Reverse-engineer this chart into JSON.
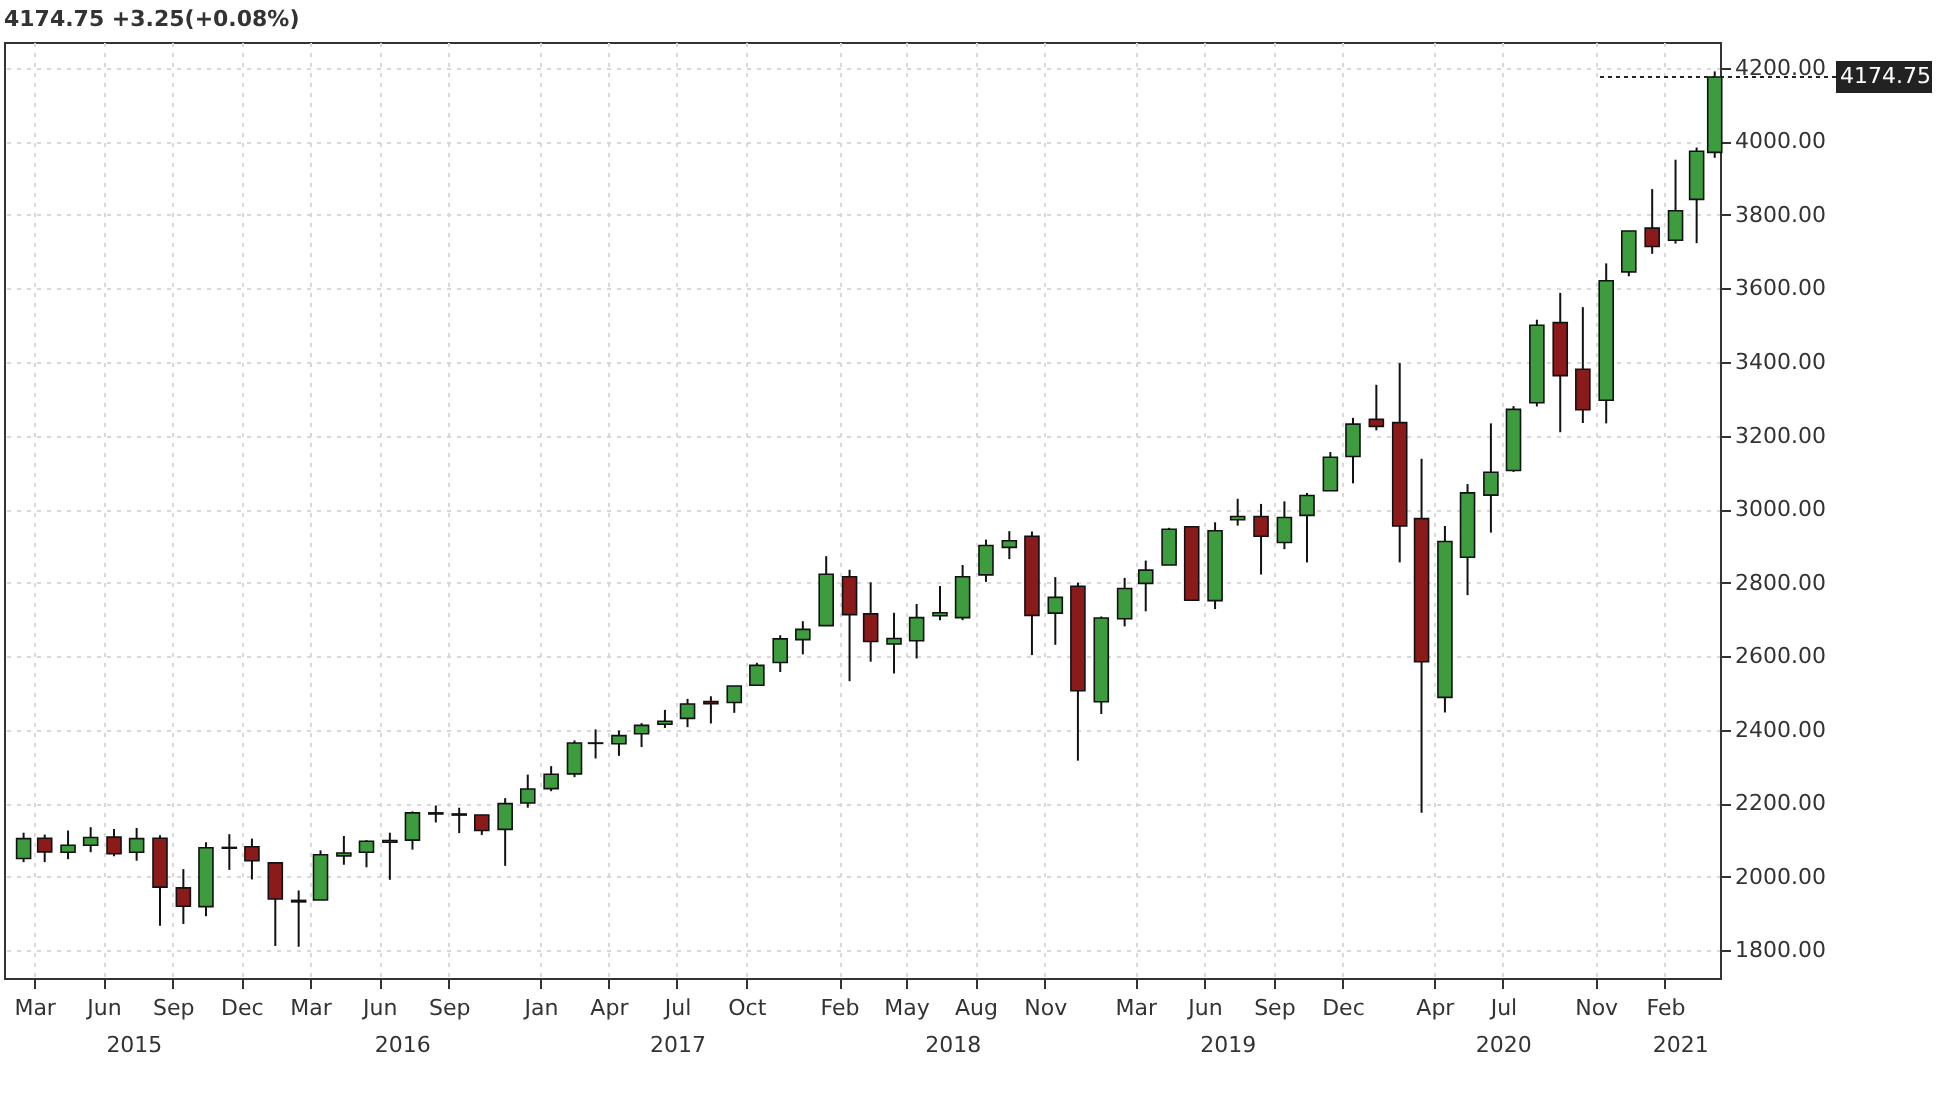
{
  "chart_data": {
    "type": "candlestick",
    "title": "4174.75 +3.25(+0.08%)",
    "x": [
      "2015-02-15",
      "2015-03-15",
      "2015-04-15",
      "2015-05-15",
      "2015-06-15",
      "2015-07-15",
      "2015-08-15",
      "2015-09-15",
      "2015-10-15",
      "2015-11-15",
      "2015-12-15",
      "2016-01-15",
      "2016-02-15",
      "2016-03-15",
      "2016-04-15",
      "2016-05-15",
      "2016-06-15",
      "2016-07-15",
      "2016-08-15",
      "2016-09-15",
      "2016-10-15",
      "2016-11-15",
      "2016-12-15",
      "2017-01-15",
      "2017-02-15",
      "2017-03-15",
      "2017-04-15",
      "2017-05-15",
      "2017-06-15",
      "2017-07-15",
      "2017-08-15",
      "2017-09-15",
      "2017-10-15",
      "2017-11-15",
      "2017-12-15",
      "2018-01-15",
      "2018-02-15",
      "2018-03-15",
      "2018-04-15",
      "2018-05-15",
      "2018-06-15",
      "2018-07-15",
      "2018-08-15",
      "2018-09-15",
      "2018-10-15",
      "2018-11-15",
      "2018-12-15",
      "2019-01-15",
      "2019-02-15",
      "2019-03-15",
      "2019-04-15",
      "2019-05-15",
      "2019-06-15",
      "2019-07-15",
      "2019-08-15",
      "2019-09-15",
      "2019-10-15",
      "2019-11-15",
      "2019-12-15",
      "2020-01-15",
      "2020-02-15",
      "2020-03-15",
      "2020-04-15",
      "2020-05-15",
      "2020-06-15",
      "2020-07-15",
      "2020-08-15",
      "2020-09-15",
      "2020-10-15",
      "2020-11-15",
      "2020-12-15",
      "2021-01-15",
      "2021-02-15",
      "2021-03-15",
      "2021-04-08"
    ],
    "ohlc": [
      [
        2050,
        2120,
        2040,
        2104
      ],
      [
        2105,
        2115,
        2040,
        2068
      ],
      [
        2067,
        2126,
        2048,
        2086
      ],
      [
        2086,
        2135,
        2067,
        2107
      ],
      [
        2108,
        2130,
        2056,
        2063
      ],
      [
        2067,
        2133,
        2044,
        2104
      ],
      [
        2105,
        2113,
        1867,
        1972
      ],
      [
        1970,
        2021,
        1872,
        1920
      ],
      [
        1919,
        2094,
        1893,
        2079
      ],
      [
        2078,
        2116,
        2019,
        2080
      ],
      [
        2082,
        2104,
        1993,
        2044
      ],
      [
        2038,
        2038,
        1812,
        1940
      ],
      [
        1936,
        1963,
        1810,
        1932
      ],
      [
        1937,
        2072,
        1937,
        2060
      ],
      [
        2057,
        2111,
        2033,
        2065
      ],
      [
        2067,
        2100,
        2026,
        2097
      ],
      [
        2094,
        2120,
        1992,
        2099
      ],
      [
        2100,
        2178,
        2074,
        2174
      ],
      [
        2174,
        2194,
        2148,
        2171
      ],
      [
        2171,
        2188,
        2119,
        2168
      ],
      [
        2168,
        2169,
        2114,
        2126
      ],
      [
        2129,
        2214,
        2030,
        2199
      ],
      [
        2201,
        2278,
        2188,
        2239
      ],
      [
        2240,
        2301,
        2233,
        2279
      ],
      [
        2280,
        2371,
        2271,
        2364
      ],
      [
        2364,
        2401,
        2322,
        2363
      ],
      [
        2362,
        2398,
        2329,
        2384
      ],
      [
        2389,
        2418,
        2353,
        2412
      ],
      [
        2415,
        2454,
        2405,
        2423
      ],
      [
        2431,
        2484,
        2407,
        2470
      ],
      [
        2477,
        2491,
        2417,
        2471
      ],
      [
        2474,
        2519,
        2446,
        2519
      ],
      [
        2521,
        2582,
        2520,
        2575
      ],
      [
        2583,
        2657,
        2557,
        2647
      ],
      [
        2645,
        2695,
        2605,
        2673
      ],
      [
        2683,
        2872,
        2682,
        2823
      ],
      [
        2816,
        2835,
        2532,
        2713
      ],
      [
        2715,
        2801,
        2585,
        2640
      ],
      [
        2633,
        2718,
        2553,
        2648
      ],
      [
        2642,
        2742,
        2594,
        2705
      ],
      [
        2710,
        2791,
        2698,
        2718
      ],
      [
        2705,
        2848,
        2698,
        2816
      ],
      [
        2821,
        2917,
        2802,
        2901
      ],
      [
        2896,
        2940,
        2864,
        2914
      ],
      [
        2926,
        2939,
        2603,
        2711
      ],
      [
        2717,
        2815,
        2631,
        2760
      ],
      [
        2790,
        2800,
        2316,
        2506
      ],
      [
        2476,
        2708,
        2443,
        2704
      ],
      [
        2702,
        2813,
        2681,
        2784
      ],
      [
        2798,
        2860,
        2722,
        2834
      ],
      [
        2848,
        2949,
        2848,
        2945
      ],
      [
        2952,
        2954,
        2750,
        2752
      ],
      [
        2751,
        2964,
        2728,
        2941
      ],
      [
        2971,
        3028,
        2955,
        2980
      ],
      [
        2980,
        3014,
        2822,
        2926
      ],
      [
        2909,
        3021,
        2891,
        2977
      ],
      [
        2983,
        3044,
        2855,
        3037
      ],
      [
        3050,
        3155,
        3050,
        3141
      ],
      [
        3143,
        3248,
        3070,
        3231
      ],
      [
        3244,
        3338,
        3214,
        3225
      ],
      [
        3235,
        3397,
        2855,
        2954
      ],
      [
        2974,
        3137,
        2174,
        2585
      ],
      [
        2488,
        2954,
        2447,
        2912
      ],
      [
        2869,
        3068,
        2766,
        3044
      ],
      [
        3038,
        3233,
        2936,
        3100
      ],
      [
        3105,
        3280,
        3101,
        3271
      ],
      [
        3289,
        3515,
        3279,
        3500
      ],
      [
        3507,
        3588,
        3209,
        3363
      ],
      [
        3380,
        3549,
        3234,
        3270
      ],
      [
        3296,
        3668,
        3233,
        3621
      ],
      [
        3645,
        3756,
        3633,
        3756
      ],
      [
        3764,
        3870,
        3694,
        3714
      ],
      [
        3731,
        3950,
        3722,
        3811
      ],
      [
        3842,
        3983,
        3723,
        3973
      ],
      [
        3970,
        4190,
        3955,
        4174.75
      ]
    ],
    "colors": [
      "#3d9c3d",
      "#8b1a1a",
      "#3d9c3d",
      "#3d9c3d",
      "#8b1a1a",
      "#3d9c3d",
      "#8b1a1a",
      "#8b1a1a",
      "#3d9c3d",
      "#3d9c3d",
      "#8b1a1a",
      "#8b1a1a",
      "#8b1a1a",
      "#3d9c3d",
      "#3d9c3d",
      "#3d9c3d",
      "#3d9c3d",
      "#3d9c3d",
      "#8b1a1a",
      "#8b1a1a",
      "#8b1a1a",
      "#3d9c3d",
      "#3d9c3d",
      "#3d9c3d",
      "#3d9c3d",
      "#8b1a1a",
      "#3d9c3d",
      "#3d9c3d",
      "#3d9c3d",
      "#3d9c3d",
      "#8b1a1a",
      "#3d9c3d",
      "#3d9c3d",
      "#3d9c3d",
      "#3d9c3d",
      "#3d9c3d",
      "#8b1a1a",
      "#8b1a1a",
      "#3d9c3d",
      "#3d9c3d",
      "#3d9c3d",
      "#3d9c3d",
      "#3d9c3d",
      "#3d9c3d",
      "#8b1a1a",
      "#3d9c3d",
      "#8b1a1a",
      "#3d9c3d",
      "#3d9c3d",
      "#3d9c3d",
      "#3d9c3d",
      "#8b1a1a",
      "#3d9c3d",
      "#3d9c3d",
      "#8b1a1a",
      "#3d9c3d",
      "#3d9c3d",
      "#3d9c3d",
      "#3d9c3d",
      "#8b1a1a",
      "#8b1a1a",
      "#8b1a1a",
      "#3d9c3d",
      "#3d9c3d",
      "#3d9c3d",
      "#3d9c3d",
      "#3d9c3d",
      "#8b1a1a",
      "#8b1a1a",
      "#3d9c3d",
      "#3d9c3d",
      "#8b1a1a",
      "#3d9c3d",
      "#3d9c3d",
      "#3d9c3d"
    ],
    "xlim": [
      "2015-01-20",
      "2021-04-15"
    ],
    "xticks": [
      {
        "value": "2015-03-01",
        "label": "Mar"
      },
      {
        "value": "2015-06-01",
        "label": "Jun"
      },
      {
        "value": "2015-09-01",
        "label": "Sep"
      },
      {
        "value": "2015-12-01",
        "label": "Dec"
      },
      {
        "value": "2016-03-01",
        "label": "Mar"
      },
      {
        "value": "2016-06-01",
        "label": "Jun"
      },
      {
        "value": "2016-09-01",
        "label": "Sep"
      },
      {
        "value": "2017-01-01",
        "label": "Jan"
      },
      {
        "value": "2017-04-01",
        "label": "Apr"
      },
      {
        "value": "2017-07-01",
        "label": "Jul"
      },
      {
        "value": "2017-10-01",
        "label": "Oct"
      },
      {
        "value": "2018-02-01",
        "label": "Feb"
      },
      {
        "value": "2018-05-01",
        "label": "May"
      },
      {
        "value": "2018-08-01",
        "label": "Aug"
      },
      {
        "value": "2018-11-01",
        "label": "Nov"
      },
      {
        "value": "2019-03-01",
        "label": "Mar"
      },
      {
        "value": "2019-06-01",
        "label": "Jun"
      },
      {
        "value": "2019-09-01",
        "label": "Sep"
      },
      {
        "value": "2019-12-01",
        "label": "Dec"
      },
      {
        "value": "2020-04-01",
        "label": "Apr"
      },
      {
        "value": "2020-07-01",
        "label": "Jul"
      },
      {
        "value": "2020-11-01",
        "label": "Nov"
      },
      {
        "value": "2021-02-01",
        "label": "Feb"
      }
    ],
    "ylim": [
      1725,
      4270
    ],
    "yticks": [
      {
        "value": 1800,
        "label": "1800.00"
      },
      {
        "value": 2000,
        "label": "2000.00"
      },
      {
        "value": 2200,
        "label": "2200.00"
      },
      {
        "value": 2400,
        "label": "2400.00"
      },
      {
        "value": 2600,
        "label": "2600.00"
      },
      {
        "value": 2800,
        "label": "2800.00"
      },
      {
        "value": 3000,
        "label": "3000.00"
      },
      {
        "value": 3200,
        "label": "3200.00"
      },
      {
        "value": 3400,
        "label": "3400.00"
      },
      {
        "value": 3600,
        "label": "3600.00"
      },
      {
        "value": 3800,
        "label": "3800.00"
      },
      {
        "value": 4000,
        "label": "4000.00"
      },
      {
        "value": 4200,
        "label": "4200.00"
      }
    ],
    "ref_lines": [
      {
        "axis": "y",
        "value": 4174.75,
        "label": "4174.75",
        "color": "#222222"
      }
    ],
    "annotations": [
      "2015",
      "2016",
      "2017",
      "2018",
      "2019",
      "2020",
      "2021"
    ],
    "grid": true
  }
}
